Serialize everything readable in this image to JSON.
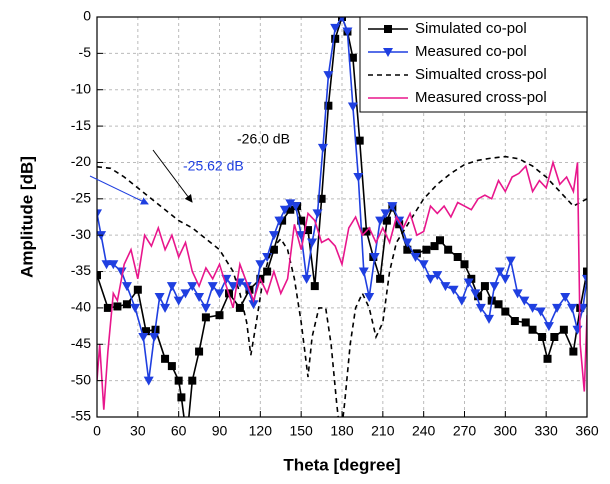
{
  "chart_data": {
    "type": "line",
    "xlabel": "Theta [degree]",
    "ylabel": "Amplitude [dB]",
    "xlim": [
      0,
      360
    ],
    "xticks": [
      0,
      30,
      60,
      90,
      120,
      150,
      180,
      210,
      240,
      270,
      300,
      330,
      360
    ],
    "ylim": [
      -55,
      0
    ],
    "yticks": [
      0,
      -5,
      -10,
      -15,
      -20,
      -25,
      -30,
      -35,
      -40,
      -45,
      -50,
      -55
    ],
    "grid": true,
    "legend": "upper right",
    "annotations": [
      {
        "text": "-26.0 dB",
        "color": "#000000"
      },
      {
        "text": "-25.62 dB",
        "color": "#1f3fe0"
      }
    ],
    "series": [
      {
        "name": "Simulated co-pol",
        "color": "#000000",
        "dash": "solid",
        "marker": "square",
        "x": [
          0,
          8,
          15,
          22,
          30,
          36,
          43,
          50,
          55,
          60,
          62,
          66,
          70,
          75,
          80,
          90,
          97,
          105,
          112,
          120,
          125,
          130,
          136,
          142,
          147,
          150,
          155,
          160,
          165,
          170,
          175,
          180,
          184,
          188,
          193,
          198,
          203,
          208,
          213,
          217,
          222,
          228,
          235,
          242,
          248,
          252,
          258,
          265,
          270,
          275,
          280,
          285,
          290,
          295,
          300,
          307,
          315,
          320,
          327,
          331,
          336,
          343,
          350,
          355,
          360
        ],
        "values": [
          -35.5,
          -40,
          -39.8,
          -39.5,
          -37.5,
          -43.2,
          -43,
          -47,
          -48,
          -50,
          -52.3,
          -58,
          -50,
          -46,
          -41.3,
          -41,
          -38,
          -40,
          -37.5,
          -36,
          -35,
          -32,
          -28,
          -26.5,
          -26,
          -28,
          -29.3,
          -37,
          -25,
          -12.2,
          -3,
          0,
          -2,
          -5.6,
          -17,
          -29.5,
          -33,
          -36,
          -28,
          -26.2,
          -28.5,
          -32,
          -32.5,
          -32,
          -31.5,
          -30.7,
          -32,
          -33,
          -34,
          -36,
          -38.4,
          -37,
          -39,
          -39.5,
          -40.5,
          -41.8,
          -42,
          -43,
          -44,
          -47,
          -44,
          -43,
          -46,
          -40,
          -35
        ]
      },
      {
        "name": "Measured co-pol",
        "color": "#1f3fe0",
        "dash": "solid",
        "marker": "triangle-down",
        "x": [
          0,
          3,
          7,
          12,
          18,
          22,
          28,
          34,
          38,
          42,
          46,
          50,
          55,
          60,
          65,
          70,
          75,
          80,
          85,
          90,
          95,
          100,
          105,
          110,
          115,
          120,
          125,
          130,
          134,
          138,
          142,
          146,
          150,
          154,
          158,
          162,
          166,
          170,
          175,
          180,
          184,
          188,
          192,
          196,
          200,
          204,
          208,
          212,
          217,
          222,
          228,
          234,
          240,
          245,
          250,
          256,
          262,
          268,
          273,
          278,
          282,
          288,
          292,
          296,
          300,
          304,
          309,
          314,
          320,
          326,
          332,
          338,
          344,
          349,
          353,
          357,
          360
        ],
        "values": [
          -27,
          -30,
          -34,
          -34,
          -35,
          -37,
          -40,
          -44,
          -50,
          -44,
          -38.5,
          -40,
          -37,
          -39,
          -38,
          -37,
          -38.5,
          -40,
          -37,
          -38,
          -36,
          -37,
          -36.5,
          -37,
          -39.5,
          -34,
          -33,
          -30,
          -28,
          -26.5,
          -25.62,
          -26,
          -30,
          -36,
          -31,
          -27,
          -18,
          -8,
          -1.5,
          0,
          -2,
          -12.3,
          -22,
          -35,
          -38.5,
          -33,
          -28,
          -27,
          -26,
          -28,
          -31,
          -33,
          -34,
          -36,
          -35.5,
          -37,
          -37.5,
          -39,
          -36.5,
          -38,
          -40,
          -41.5,
          -37,
          -35,
          -36,
          -33.5,
          -38,
          -39,
          -40,
          -40.5,
          -42.5,
          -40,
          -38.5,
          -40,
          -43,
          -40,
          -36
        ]
      },
      {
        "name": "Simualted cross-pol",
        "color": "#000000",
        "dash": "dashed",
        "marker": "none",
        "x": [
          0,
          10,
          20,
          30,
          40,
          50,
          60,
          70,
          80,
          90,
          100,
          105,
          110,
          113,
          117,
          122,
          128,
          135,
          140,
          145,
          150,
          155,
          158,
          163,
          168,
          172,
          176,
          179,
          182,
          186,
          190,
          195,
          200,
          205,
          210,
          215,
          220,
          230,
          240,
          250,
          260,
          270,
          280,
          290,
          300,
          310,
          320,
          330,
          340,
          350,
          360
        ],
        "values": [
          -20.6,
          -20.8,
          -22,
          -23.5,
          -25,
          -26.5,
          -28,
          -29,
          -30.5,
          -32,
          -35,
          -38,
          -42,
          -46.5,
          -42,
          -36,
          -32,
          -30.5,
          -32,
          -36,
          -42,
          -49.5,
          -44,
          -40,
          -40,
          -45,
          -53,
          -58,
          -53,
          -45,
          -40,
          -38,
          -40,
          -44,
          -42,
          -35,
          -31,
          -28,
          -25,
          -23,
          -21.5,
          -20.3,
          -19.7,
          -19.4,
          -19.2,
          -19.5,
          -20.5,
          -22,
          -24,
          -26,
          -25
        ]
      },
      {
        "name": "Measured cross-pol",
        "color": "#e8168c",
        "dash": "solid",
        "marker": "none",
        "x": [
          0,
          2,
          5,
          8,
          12,
          15,
          20,
          25,
          30,
          35,
          40,
          45,
          50,
          55,
          60,
          65,
          70,
          75,
          80,
          85,
          90,
          95,
          100,
          105,
          110,
          115,
          120,
          125,
          130,
          135,
          140,
          145,
          150,
          155,
          160,
          165,
          170,
          175,
          180,
          185,
          190,
          195,
          200,
          205,
          210,
          215,
          220,
          225,
          230,
          235,
          240,
          245,
          250,
          255,
          260,
          265,
          270,
          275,
          280,
          285,
          290,
          295,
          300,
          305,
          310,
          315,
          320,
          325,
          330,
          335,
          340,
          345,
          350,
          353,
          355,
          358,
          360
        ],
        "values": [
          -50,
          -45,
          -54,
          -46,
          -38,
          -39,
          -34,
          -32,
          -36,
          -30,
          -31.5,
          -29,
          -32,
          -30,
          -33,
          -31,
          -35,
          -37,
          -34.5,
          -36,
          -34,
          -37,
          -40,
          -34,
          -36.5,
          -39,
          -36,
          -38,
          -35,
          -38,
          -36,
          -28.5,
          -32,
          -27,
          -28,
          -31,
          -30.5,
          -31.5,
          -34,
          -29,
          -27.5,
          -30,
          -29,
          -31,
          -29,
          -31,
          -27.5,
          -29,
          -27,
          -30,
          -29.5,
          -26,
          -27,
          -26,
          -27.5,
          -25.5,
          -26,
          -26.5,
          -25,
          -24.5,
          -25,
          -22.5,
          -24,
          -22,
          -21.5,
          -20.5,
          -24,
          -22.5,
          -23.5,
          -20,
          -23,
          -22,
          -24,
          -20,
          -45,
          -51.5,
          -41
        ]
      }
    ]
  }
}
